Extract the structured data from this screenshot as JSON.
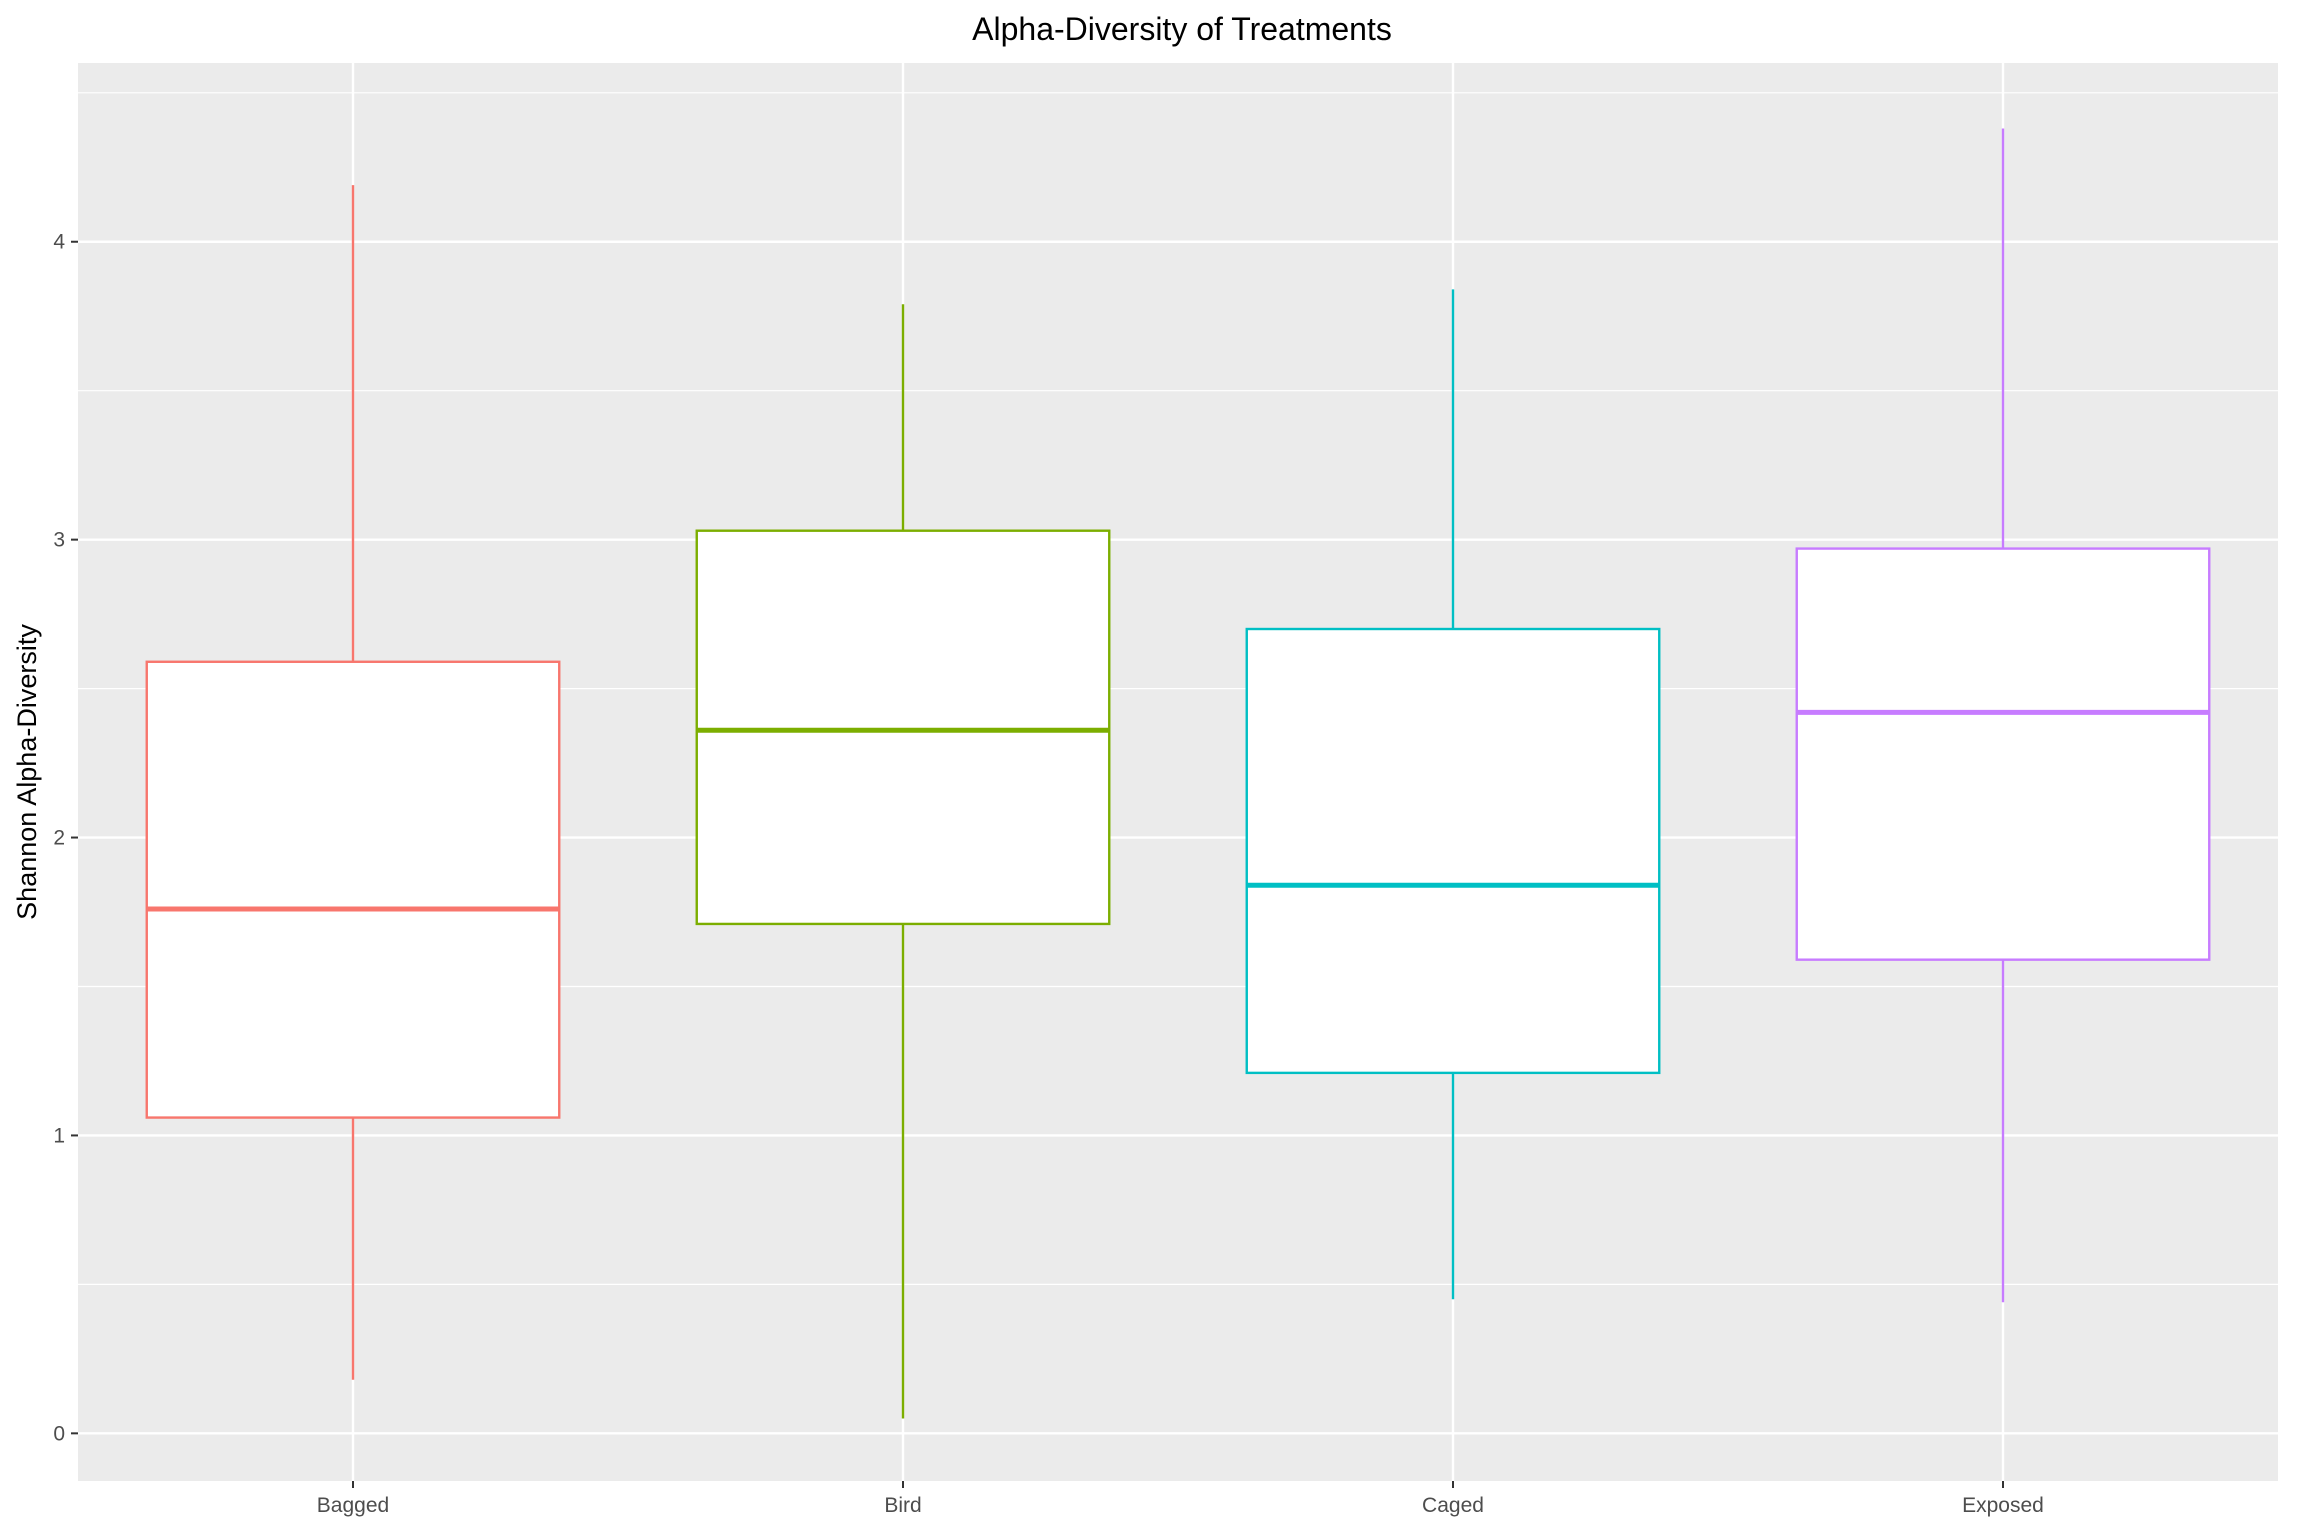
{
  "chart_data": {
    "type": "boxplot",
    "title": "Alpha-Diversity of Treatments",
    "xlabel": "",
    "ylabel": "Shannon Alpha-Diversity",
    "categories": [
      "Bagged",
      "Bird",
      "Caged",
      "Exposed"
    ],
    "yticks": [
      0,
      1,
      2,
      3,
      4
    ],
    "yticks_minor": [
      0.5,
      1.5,
      2.5,
      3.5,
      4.5
    ],
    "ylim": [
      -0.16,
      4.6
    ],
    "grid": true,
    "legend": "none",
    "panel_background": "#ebebeb",
    "grid_color": "#ffffff",
    "box_fill": "#ffffff",
    "boxes": [
      {
        "category": "Bagged",
        "min": 0.18,
        "q1": 1.06,
        "median": 1.76,
        "q3": 2.59,
        "max": 4.19,
        "color": "#f8766d"
      },
      {
        "category": "Bird",
        "min": 0.05,
        "q1": 1.71,
        "median": 2.36,
        "q3": 3.03,
        "max": 3.79,
        "color": "#7cae00"
      },
      {
        "category": "Caged",
        "min": 0.45,
        "q1": 1.21,
        "median": 1.84,
        "q3": 2.7,
        "max": 3.84,
        "color": "#00bfc4"
      },
      {
        "category": "Exposed",
        "min": 0.44,
        "q1": 1.59,
        "median": 2.42,
        "q3": 2.97,
        "max": 4.38,
        "color": "#c77cff"
      }
    ]
  }
}
